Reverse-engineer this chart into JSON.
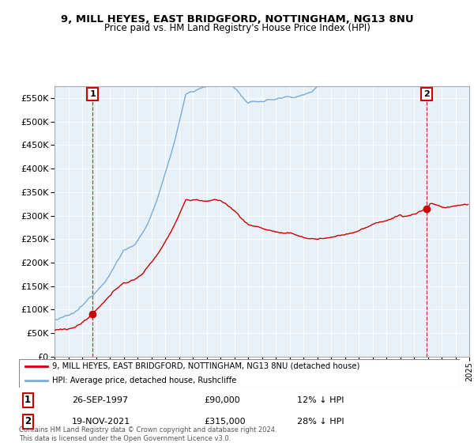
{
  "title1": "9, MILL HEYES, EAST BRIDGFORD, NOTTINGHAM, NG13 8NU",
  "title2": "Price paid vs. HM Land Registry's House Price Index (HPI)",
  "sale1_date": "26-SEP-1997",
  "sale1_price": 90000,
  "sale2_date": "19-NOV-2021",
  "sale2_price": 315000,
  "sale1_hpi_note": "12% ↓ HPI",
  "sale2_hpi_note": "28% ↓ HPI",
  "legend_line1": "9, MILL HEYES, EAST BRIDGFORD, NOTTINGHAM, NG13 8NU (detached house)",
  "legend_line2": "HPI: Average price, detached house, Rushcliffe",
  "footer": "Contains HM Land Registry data © Crown copyright and database right 2024.\nThis data is licensed under the Open Government Licence v3.0.",
  "red_color": "#cc0000",
  "blue_color": "#7aacd6",
  "bg_color": "#e8f0f8",
  "ylim": [
    0,
    575000
  ],
  "yticks": [
    0,
    50000,
    100000,
    150000,
    200000,
    250000,
    300000,
    350000,
    400000,
    450000,
    500000,
    550000
  ],
  "x_start_year": 1995,
  "x_end_year": 2025,
  "sale1_x": 1997.75,
  "sale2_x": 2021.9
}
